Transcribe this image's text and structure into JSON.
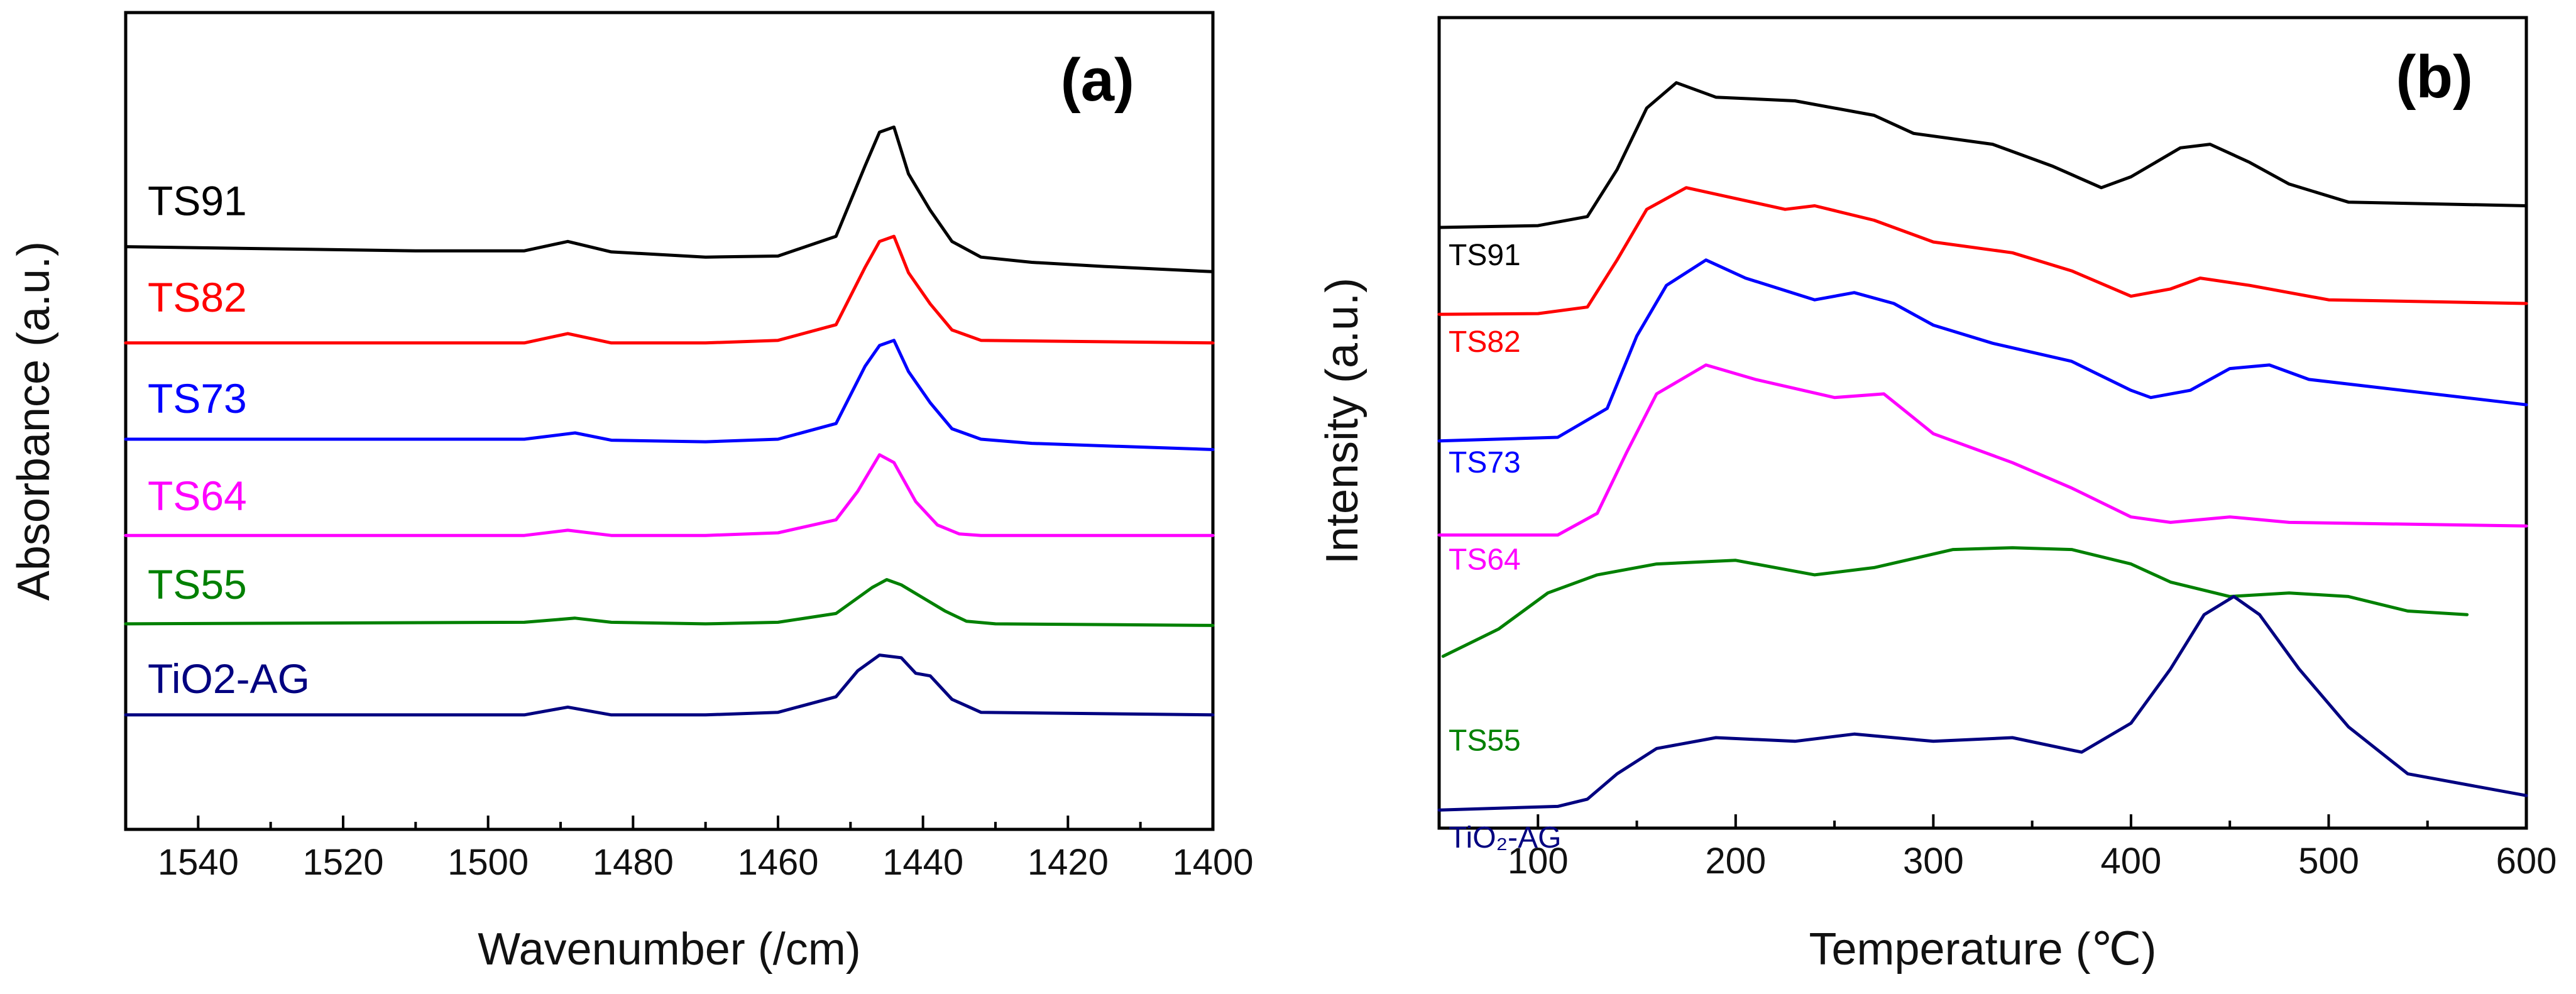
{
  "chart_data": [
    {
      "type": "line",
      "panel": "(a)",
      "xlabel": "Wavenumber (/cm)",
      "ylabel": "Absorbance (a.u.)",
      "xlim": [
        1550,
        1400
      ],
      "x_reversed": true,
      "xticks": [
        1540,
        1520,
        1500,
        1480,
        1460,
        1440,
        1420,
        1400
      ],
      "y_ticks_shown": false,
      "series": [
        {
          "name": "TS91",
          "color": "#000000",
          "baseline": 9.0,
          "slope": -0.004,
          "x": [
            1550,
            1510,
            1495,
            1489,
            1483,
            1470,
            1460,
            1452,
            1448,
            1446,
            1444,
            1442,
            1439,
            1436,
            1432,
            1425,
            1415,
            1400
          ],
          "y": [
            9.0,
            8.92,
            8.92,
            9.1,
            8.9,
            8.8,
            8.82,
            9.2,
            10.55,
            11.2,
            11.3,
            10.4,
            9.7,
            9.1,
            8.8,
            8.7,
            8.62,
            8.52
          ]
        },
        {
          "name": "TS82",
          "color": "#ff0000",
          "baseline": 7.15,
          "slope": 0,
          "x": [
            1550,
            1495,
            1489,
            1483,
            1470,
            1460,
            1452,
            1448,
            1446,
            1444,
            1442,
            1439,
            1436,
            1432,
            1400
          ],
          "y": [
            7.15,
            7.15,
            7.33,
            7.15,
            7.15,
            7.2,
            7.5,
            8.6,
            9.1,
            9.2,
            8.5,
            7.9,
            7.4,
            7.2,
            7.15
          ]
        },
        {
          "name": "TS73",
          "color": "#0000ff",
          "baseline": 5.3,
          "slope": 0,
          "x": [
            1550,
            1495,
            1488,
            1483,
            1470,
            1460,
            1452,
            1448,
            1446,
            1444,
            1442,
            1439,
            1436,
            1432,
            1425,
            1400
          ],
          "y": [
            5.3,
            5.3,
            5.42,
            5.28,
            5.25,
            5.3,
            5.6,
            6.7,
            7.1,
            7.2,
            6.6,
            6.0,
            5.5,
            5.3,
            5.22,
            5.1
          ]
        },
        {
          "name": "TS64",
          "color": "#ff00ff",
          "baseline": 3.45,
          "slope": 0,
          "x": [
            1550,
            1495,
            1489,
            1483,
            1470,
            1460,
            1452,
            1449,
            1446,
            1444,
            1441,
            1438,
            1435,
            1432,
            1400
          ],
          "y": [
            3.45,
            3.45,
            3.55,
            3.45,
            3.45,
            3.5,
            3.75,
            4.3,
            5.0,
            4.85,
            4.1,
            3.65,
            3.48,
            3.45,
            3.45
          ]
        },
        {
          "name": "TS55",
          "color": "#008000",
          "baseline": 1.75,
          "slope": 0,
          "x": [
            1550,
            1495,
            1488,
            1483,
            1470,
            1460,
            1452,
            1447,
            1445,
            1443,
            1440,
            1437,
            1434,
            1430,
            1400
          ],
          "y": [
            1.75,
            1.78,
            1.86,
            1.78,
            1.75,
            1.78,
            1.95,
            2.45,
            2.6,
            2.5,
            2.25,
            2.0,
            1.8,
            1.75,
            1.72
          ]
        },
        {
          "name": "TiO2-AG",
          "color": "#000080",
          "baseline": 0,
          "slope": 0,
          "x": [
            1550,
            1495,
            1489,
            1483,
            1470,
            1460,
            1452,
            1449,
            1446,
            1443,
            1441,
            1439,
            1436,
            1432,
            1400
          ],
          "y": [
            0.0,
            0.0,
            0.15,
            0.0,
            0.0,
            0.05,
            0.35,
            0.85,
            1.15,
            1.1,
            0.8,
            0.75,
            0.3,
            0.05,
            0.0
          ]
        }
      ],
      "labels": [
        "TS91",
        "TS82",
        "TS73",
        "TS64",
        "TS55",
        "TiO2-AG"
      ]
    },
    {
      "type": "line",
      "panel": "(b)",
      "xlabel": "Temperature (℃)",
      "ylabel": "Intensity (a.u.)",
      "xlim": [
        50,
        600
      ],
      "xticks": [
        100,
        200,
        300,
        400,
        500,
        600
      ],
      "y_ticks_shown": false,
      "series": [
        {
          "name": "TS91",
          "color": "#000000",
          "x": [
            50,
            100,
            125,
            140,
            155,
            170,
            190,
            230,
            270,
            290,
            330,
            360,
            385,
            400,
            425,
            440,
            460,
            480,
            510,
            600
          ],
          "y": [
            12.2,
            12.25,
            12.5,
            13.8,
            15.5,
            16.2,
            15.8,
            15.7,
            15.3,
            14.8,
            14.5,
            13.9,
            13.3,
            13.6,
            14.4,
            14.5,
            14.0,
            13.4,
            12.9,
            12.8
          ]
        },
        {
          "name": "TS82",
          "color": "#ff0000",
          "x": [
            50,
            100,
            125,
            140,
            155,
            175,
            200,
            225,
            240,
            270,
            300,
            340,
            370,
            400,
            420,
            435,
            460,
            500,
            600
          ],
          "y": [
            9.8,
            9.82,
            10.0,
            11.3,
            12.7,
            13.3,
            13.0,
            12.7,
            12.8,
            12.4,
            11.8,
            11.5,
            11.0,
            10.3,
            10.5,
            10.8,
            10.6,
            10.2,
            10.1
          ]
        },
        {
          "name": "TS73",
          "color": "#0000ff",
          "x": [
            50,
            110,
            135,
            150,
            165,
            185,
            205,
            240,
            260,
            280,
            300,
            330,
            370,
            400,
            410,
            430,
            450,
            470,
            490,
            600
          ],
          "y": [
            6.3,
            6.4,
            7.2,
            9.2,
            10.6,
            11.3,
            10.8,
            10.2,
            10.4,
            10.1,
            9.5,
            9.0,
            8.5,
            7.7,
            7.5,
            7.7,
            8.3,
            8.4,
            8.0,
            7.3
          ]
        },
        {
          "name": "TS64",
          "color": "#ff00ff",
          "x": [
            50,
            110,
            130,
            145,
            160,
            185,
            210,
            250,
            275,
            300,
            340,
            370,
            400,
            420,
            450,
            480,
            600
          ],
          "y": [
            3.7,
            3.7,
            4.3,
            6.0,
            7.6,
            8.4,
            8.0,
            7.5,
            7.6,
            6.5,
            5.7,
            5.0,
            4.2,
            4.05,
            4.2,
            4.05,
            3.95
          ]
        },
        {
          "name": "TS55",
          "color": "#008000",
          "x": [
            52,
            80,
            105,
            130,
            160,
            200,
            240,
            270,
            310,
            340,
            370,
            400,
            420,
            450,
            480,
            510,
            540,
            570
          ],
          "y": [
            0.35,
            1.1,
            2.1,
            2.6,
            2.9,
            3.0,
            2.6,
            2.8,
            3.3,
            3.35,
            3.3,
            2.9,
            2.4,
            2.0,
            2.1,
            2.0,
            1.6,
            1.5
          ]
        },
        {
          "name": "TiO₂-AG",
          "color": "#000080",
          "x": [
            50,
            110,
            125,
            140,
            160,
            190,
            230,
            260,
            300,
            340,
            375,
            400,
            420,
            437,
            452,
            465,
            485,
            510,
            540,
            600
          ],
          "y": [
            -3.9,
            -3.8,
            -3.6,
            -2.9,
            -2.2,
            -1.9,
            -2.0,
            -1.8,
            -2.0,
            -1.9,
            -2.3,
            -1.5,
            0.0,
            1.5,
            2.0,
            1.5,
            0.0,
            -1.6,
            -2.9,
            -3.5
          ]
        }
      ],
      "labels": [
        "TS91",
        "TS82",
        "TS73",
        "TS64",
        "TS55",
        "TiO₂-AG"
      ]
    }
  ]
}
